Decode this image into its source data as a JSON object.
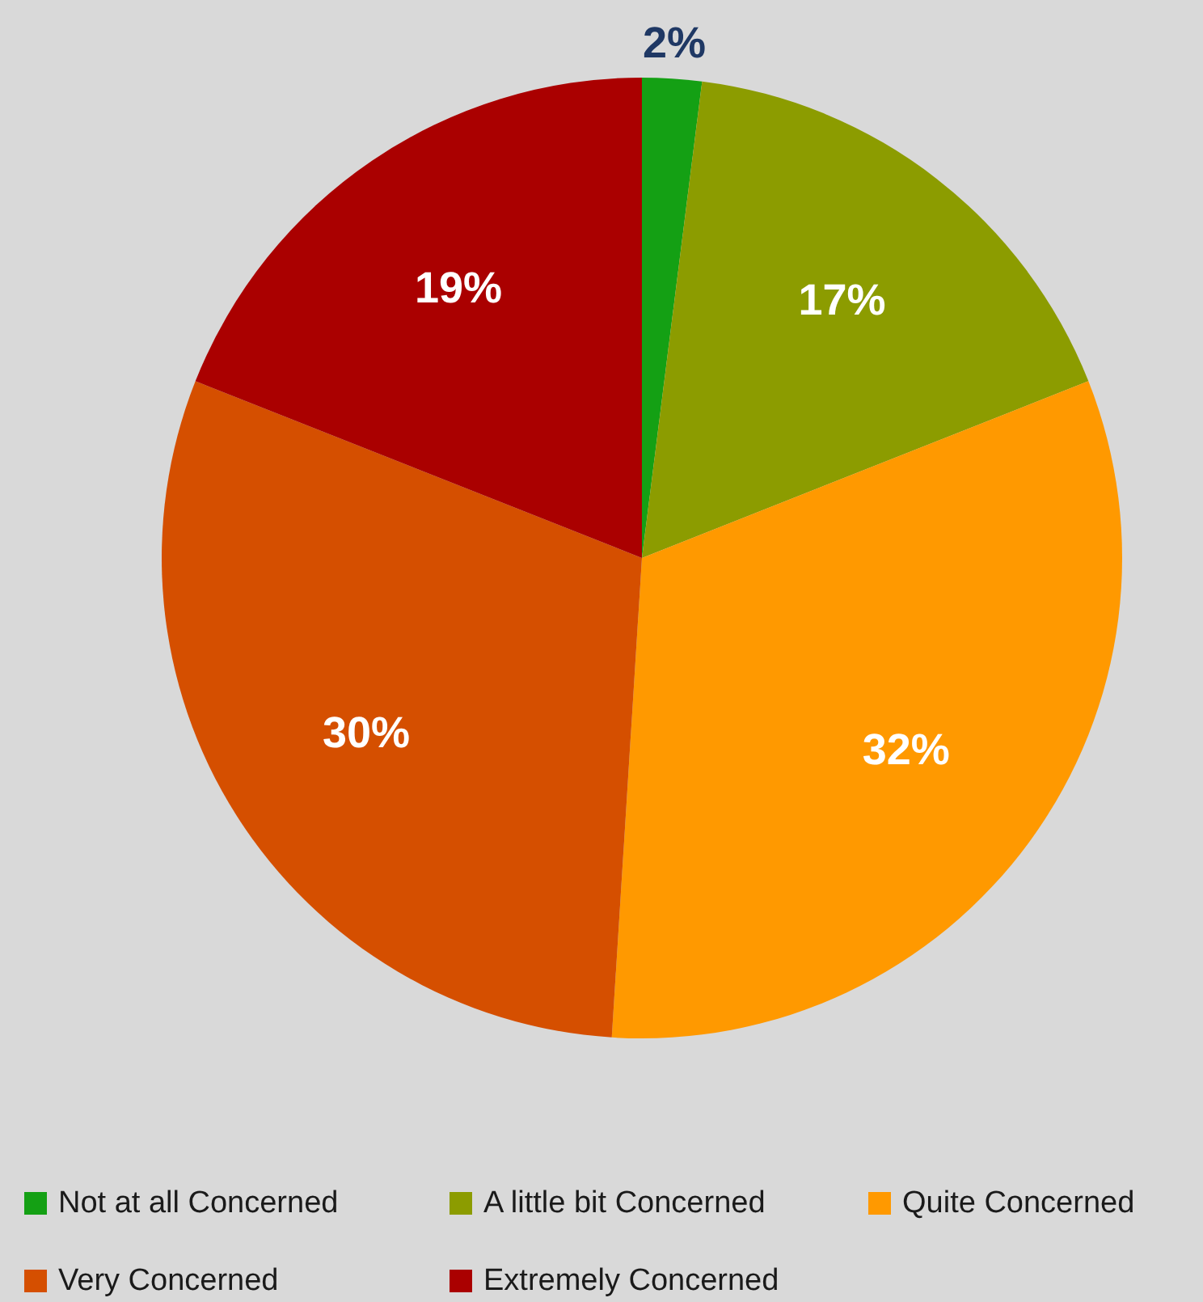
{
  "chart_data": {
    "type": "pie",
    "categories": [
      "Not at all Concerned",
      "A little bit Concerned",
      "Quite Concerned",
      "Very Concerned",
      "Extremely Concerned"
    ],
    "values": [
      2,
      17,
      32,
      30,
      19
    ],
    "value_labels": [
      "2%",
      "17%",
      "32%",
      "30%",
      "19%"
    ],
    "colors": [
      "#14a014",
      "#8c9c00",
      "#ff9900",
      "#d54f00",
      "#aa0000"
    ],
    "legend": "bottom"
  }
}
